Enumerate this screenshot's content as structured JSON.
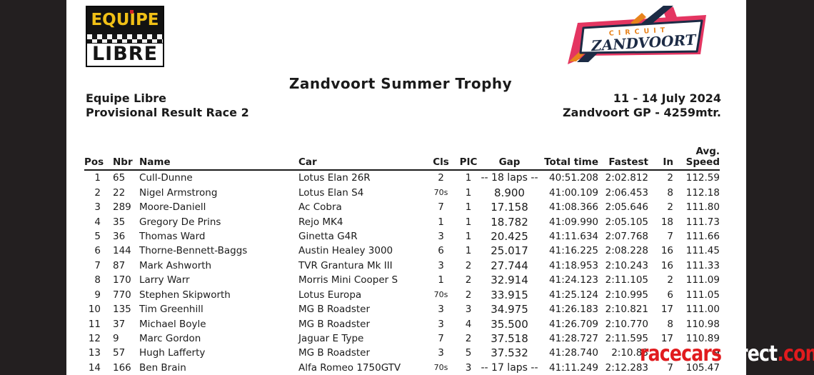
{
  "branding": {
    "equipe_logo": {
      "top_word": "EQUIPE",
      "bottom_word": "LIBRE"
    },
    "zandvoort_logo": {
      "line1": "CIRCUIT",
      "line2": "ZANDVOORT"
    }
  },
  "header": {
    "title": "Zandvoort Summer Trophy",
    "organizer": "Equipe Libre",
    "subtitle": "Provisional Result Race 2",
    "event_dates": "11 - 14 July 2024",
    "track_info": "Zandvoort GP - 4259mtr."
  },
  "results_table": {
    "columns": {
      "pos": "Pos",
      "nbr": "Nbr",
      "name": "Name",
      "car": "Car",
      "cls": "Cls",
      "pic": "PIC",
      "gap": "Gap",
      "total": "Total time",
      "fastest": "Fastest",
      "in": "In",
      "avg1": "Avg.",
      "avg2": "Speed"
    },
    "rows": [
      {
        "pos": "1",
        "nbr": "65",
        "name": "Cull-Dunne",
        "car": "Lotus Elan 26R",
        "cls": "2",
        "pic": "1",
        "gap": "-- 18 laps --",
        "total": "40:51.208",
        "fastest": "2:02.812",
        "in": "2",
        "speed": "112.59"
      },
      {
        "pos": "2",
        "nbr": "22",
        "name": "Nigel Armstrong",
        "car": "Lotus Elan S4",
        "cls": "70s",
        "pic": "1",
        "gap": "8.900",
        "total": "41:00.109",
        "fastest": "2:06.453",
        "in": "8",
        "speed": "112.18"
      },
      {
        "pos": "3",
        "nbr": "289",
        "name": "Moore-Daniell",
        "car": "Ac Cobra",
        "cls": "7",
        "pic": "1",
        "gap": "17.158",
        "total": "41:08.366",
        "fastest": "2:05.646",
        "in": "2",
        "speed": "111.80"
      },
      {
        "pos": "4",
        "nbr": "35",
        "name": "Gregory De Prins",
        "car": "Rejo MK4",
        "cls": "1",
        "pic": "1",
        "gap": "18.782",
        "total": "41:09.990",
        "fastest": "2:05.105",
        "in": "18",
        "speed": "111.73"
      },
      {
        "pos": "5",
        "nbr": "36",
        "name": "Thomas Ward",
        "car": "Ginetta G4R",
        "cls": "3",
        "pic": "1",
        "gap": "20.425",
        "total": "41:11.634",
        "fastest": "2:07.768",
        "in": "7",
        "speed": "111.66"
      },
      {
        "pos": "6",
        "nbr": "144",
        "name": "Thorne-Bennett-Baggs",
        "car": "Austin Healey 3000",
        "cls": "6",
        "pic": "1",
        "gap": "25.017",
        "total": "41:16.225",
        "fastest": "2:08.228",
        "in": "16",
        "speed": "111.45"
      },
      {
        "pos": "7",
        "nbr": "87",
        "name": "Mark Ashworth",
        "car": "TVR Grantura Mk III",
        "cls": "3",
        "pic": "2",
        "gap": "27.744",
        "total": "41:18.953",
        "fastest": "2:10.243",
        "in": "16",
        "speed": "111.33"
      },
      {
        "pos": "8",
        "nbr": "170",
        "name": "Larry Warr",
        "car": "Morris Mini Cooper S",
        "cls": "1",
        "pic": "2",
        "gap": "32.914",
        "total": "41:24.123",
        "fastest": "2:11.105",
        "in": "2",
        "speed": "111.09"
      },
      {
        "pos": "9",
        "nbr": "770",
        "name": "Stephen Skipworth",
        "car": "Lotus Europa",
        "cls": "70s",
        "pic": "2",
        "gap": "33.915",
        "total": "41:25.124",
        "fastest": "2:10.995",
        "in": "6",
        "speed": "111.05"
      },
      {
        "pos": "10",
        "nbr": "135",
        "name": "Tim Greenhill",
        "car": "MG B Roadster",
        "cls": "3",
        "pic": "3",
        "gap": "34.975",
        "total": "41:26.183",
        "fastest": "2:10.821",
        "in": "17",
        "speed": "111.00"
      },
      {
        "pos": "11",
        "nbr": "37",
        "name": "Michael Boyle",
        "car": "MG B Roadster",
        "cls": "3",
        "pic": "4",
        "gap": "35.500",
        "total": "41:26.709",
        "fastest": "2:10.770",
        "in": "8",
        "speed": "110.98"
      },
      {
        "pos": "12",
        "nbr": "9",
        "name": "Marc Gordon",
        "car": "Jaguar E Type",
        "cls": "7",
        "pic": "2",
        "gap": "37.518",
        "total": "41:28.727",
        "fastest": "2:11.595",
        "in": "17",
        "speed": "110.89"
      },
      {
        "pos": "13",
        "nbr": "57",
        "name": "Hugh Lafferty",
        "car": "MG B Roadster",
        "cls": "3",
        "pic": "5",
        "gap": "37.532",
        "total": "41:28.740",
        "fastest": "2:10.83",
        "in": "",
        "speed": "9"
      },
      {
        "pos": "14",
        "nbr": "166",
        "name": "Ben Brain",
        "car": "Alfa Romeo 1750GTV",
        "cls": "70s",
        "pic": "3",
        "gap": "-- 17 laps --",
        "total": "41:11.249",
        "fastest": "2:12.283",
        "in": "7",
        "speed": "105.47"
      }
    ]
  },
  "watermark": {
    "part1": "racecars",
    "part2": "direct",
    "part3": ".com"
  },
  "colors": {
    "frame_bg": "#231f20",
    "page_bg": "#ffffff",
    "watermark_red": "#e11b1e",
    "equipe_yellow": "#f0c016",
    "equipe_dot_red": "#cf2127",
    "zandvoort_pink": "#e43561",
    "zandvoort_navy": "#1c2b45",
    "zandvoort_orange": "#e8831c"
  }
}
